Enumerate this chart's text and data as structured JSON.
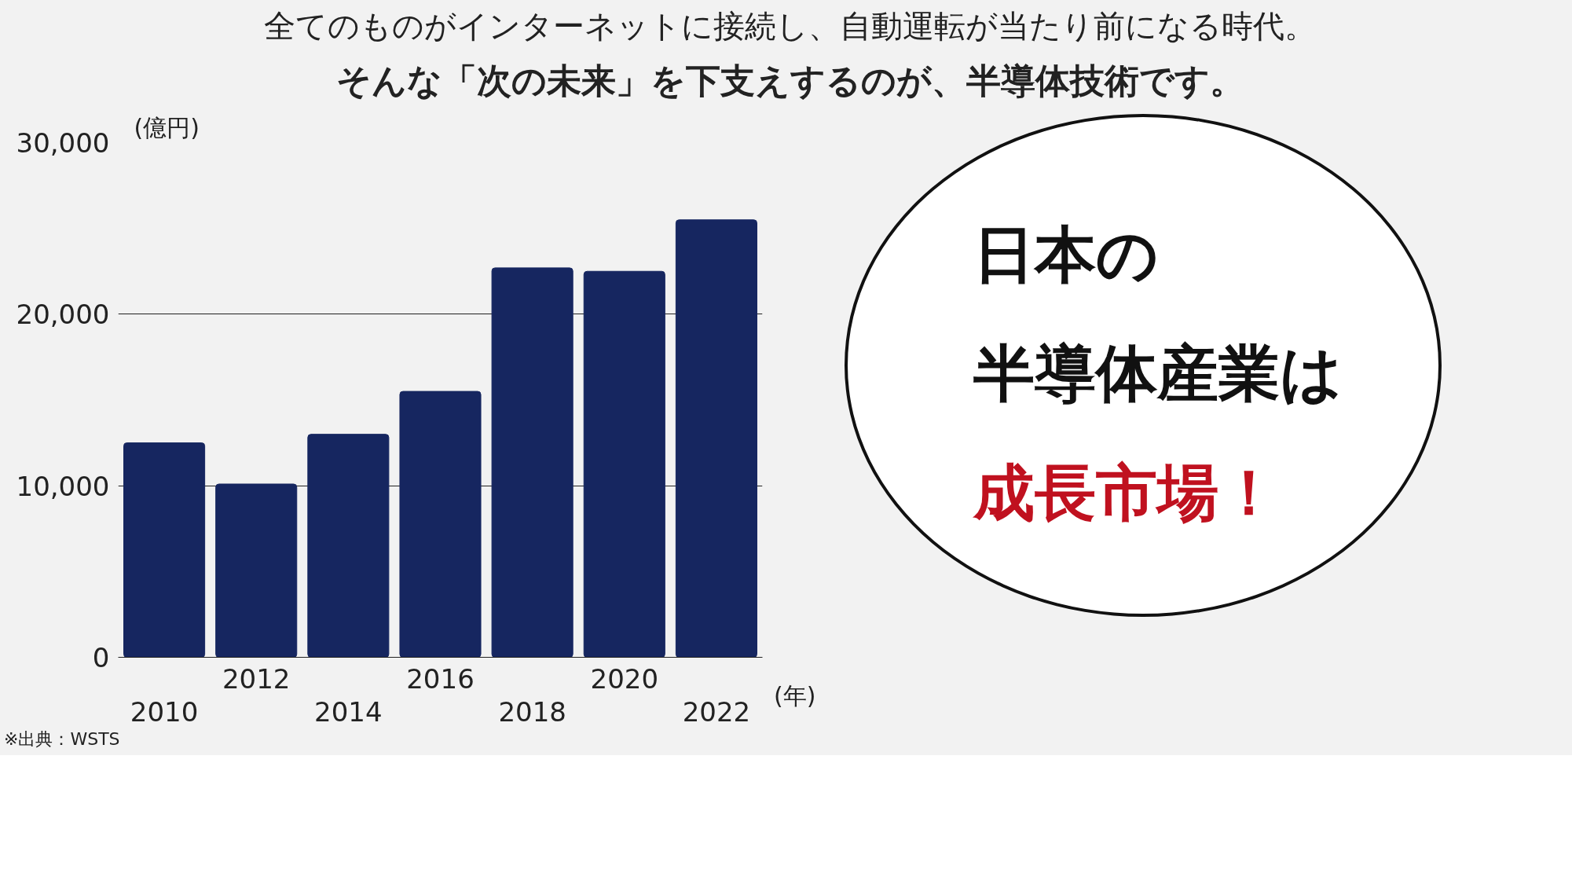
{
  "chart_data": {
    "type": "bar",
    "title": "全てのものがインターネットに接続し、自動運転が当たり前になる時代。",
    "subtitle": "そんな「次の未来」を下支えするのが、半導体技術です。",
    "ylabel": "(億円)",
    "xlabel": "(年)",
    "categories": [
      "2010",
      "2012",
      "2014",
      "2016",
      "2018",
      "2020",
      "2022"
    ],
    "values": [
      12500,
      10100,
      13000,
      15500,
      22700,
      22500,
      25500
    ],
    "color": "#162660",
    "ylim": [
      0,
      30000
    ],
    "yticks": [
      {
        "value": 0,
        "label": "0"
      },
      {
        "value": 10000,
        "label": "10,000"
      },
      {
        "value": 20000,
        "label": "20,000"
      },
      {
        "value": 30000,
        "label": "30,000"
      }
    ],
    "grid": "y",
    "annotations": [
      "日本の",
      "半導体産業は",
      "成長市場！",
      "※出典：WSTS"
    ]
  }
}
